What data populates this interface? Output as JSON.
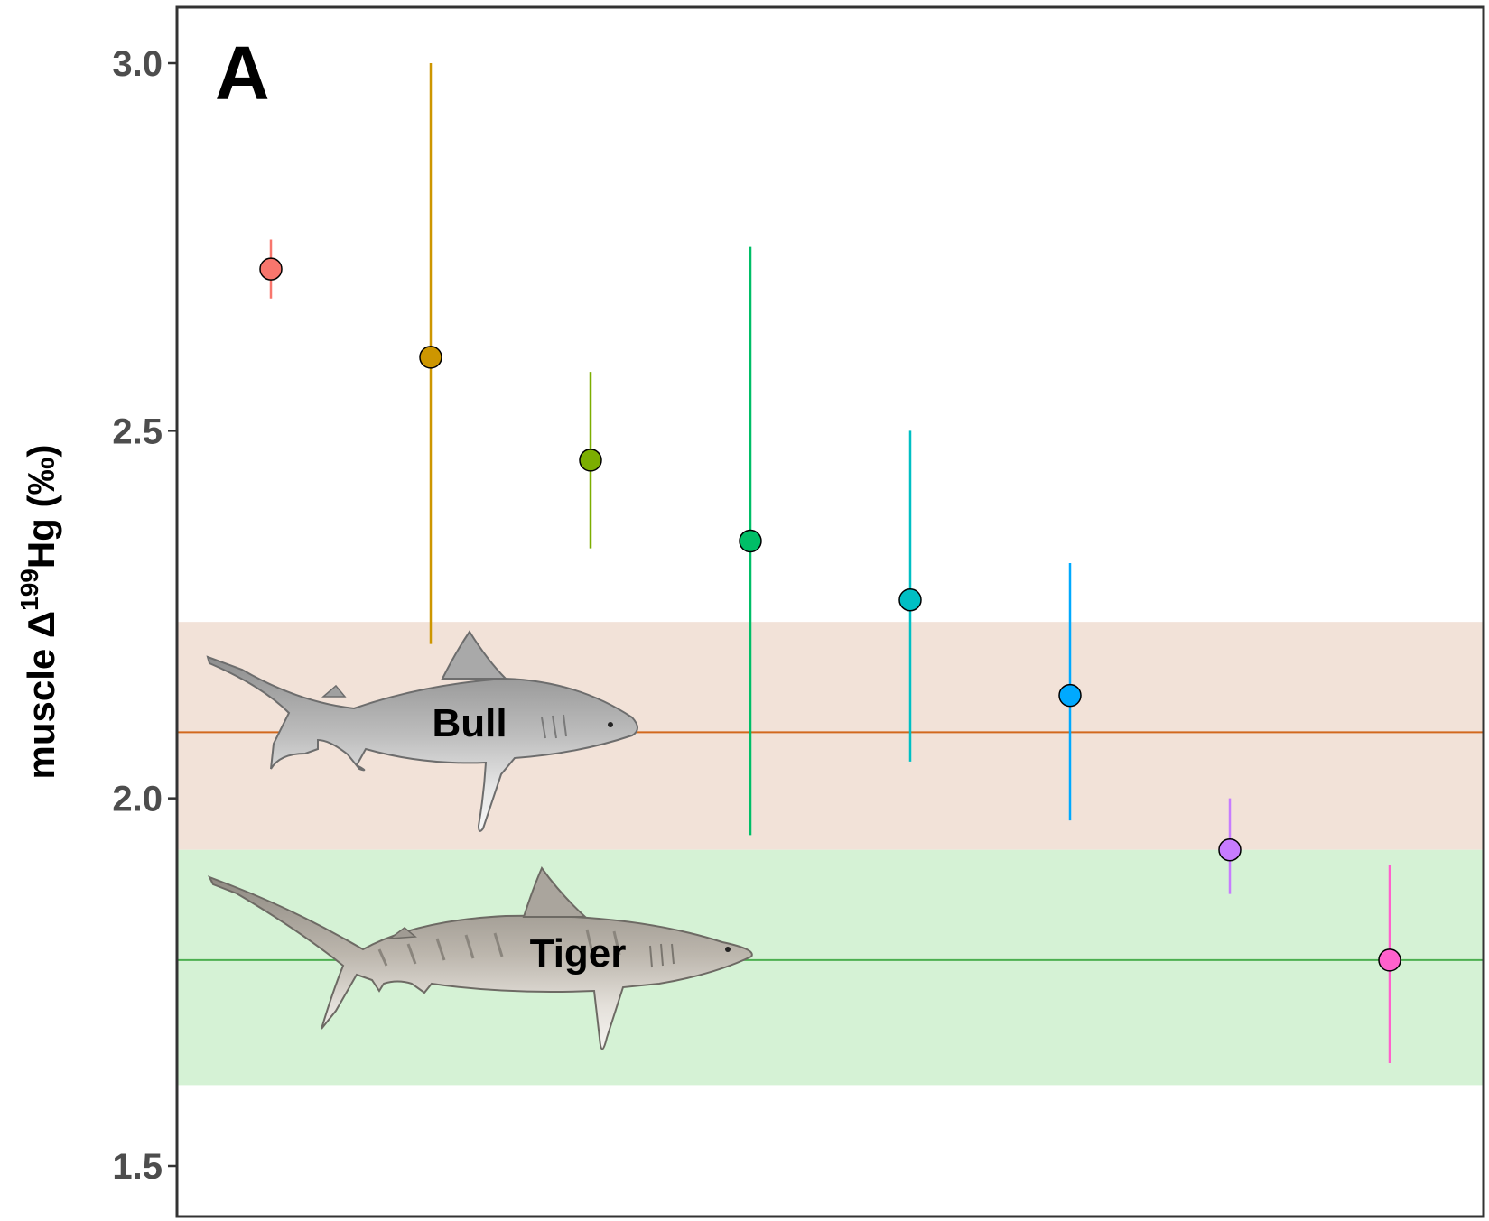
{
  "chart_data": {
    "type": "scatter",
    "panel_label": "A",
    "ylabel": {
      "prefix": "muscle Δ",
      "superscript": "199",
      "suffix": "Hg (‰)"
    },
    "yticks": [
      "1.5",
      "2.0",
      "2.5",
      "3.0"
    ],
    "ylim": [
      1.46,
      3.07
    ],
    "grid": false,
    "points": [
      {
        "y": 2.72,
        "low": 2.68,
        "high": 2.76,
        "color": "#F8766D"
      },
      {
        "y": 2.6,
        "low": 2.21,
        "high": 3.0,
        "color": "#CD9600"
      },
      {
        "y": 2.46,
        "low": 2.34,
        "high": 2.58,
        "color": "#7CAE00"
      },
      {
        "y": 2.35,
        "low": 1.95,
        "high": 2.75,
        "color": "#00BE67"
      },
      {
        "y": 2.27,
        "low": 2.05,
        "high": 2.5,
        "color": "#00BFC4"
      },
      {
        "y": 2.14,
        "low": 1.97,
        "high": 2.32,
        "color": "#00A9FF"
      },
      {
        "y": 1.93,
        "low": 1.87,
        "high": 2.0,
        "color": "#C77CFF"
      },
      {
        "y": 1.78,
        "low": 1.64,
        "high": 1.91,
        "color": "#FF61CC"
      }
    ],
    "reference_bands": [
      {
        "label": "Bull",
        "mean": 2.09,
        "low": 1.93,
        "high": 2.24,
        "band_color": "#F2E2D8",
        "line_color": "#D2691E"
      },
      {
        "label": "Tiger",
        "mean": 1.78,
        "low": 1.61,
        "high": 1.93,
        "band_color": "#D5F2D5",
        "line_color": "#4CAF50"
      }
    ]
  }
}
